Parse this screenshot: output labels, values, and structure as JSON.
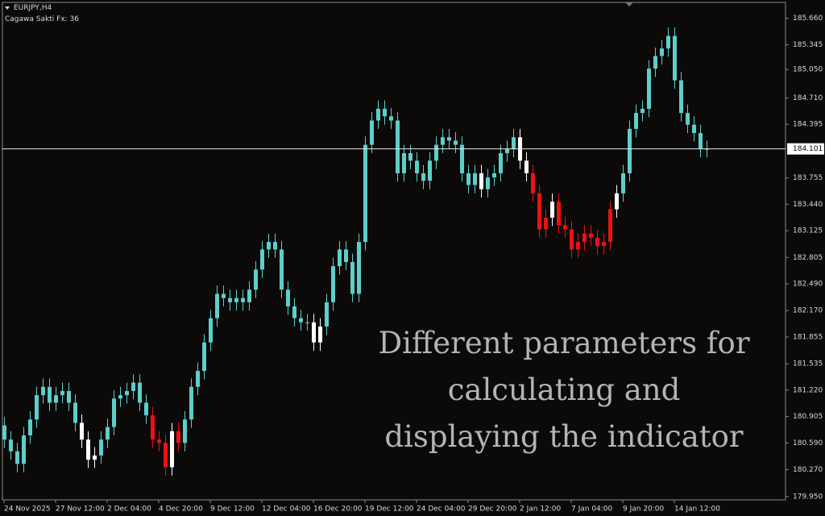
{
  "chart_data": {
    "type": "candlestick",
    "title": "EURJPY,H4",
    "subtitle": "Cagawa Sakti Fx: 36",
    "annotation": [
      "Different parameters for",
      "calculating and",
      "displaying the indicator"
    ],
    "current_price": 184.101,
    "ylim": [
      179.91,
      185.85
    ],
    "yticks": [
      {
        "value": 185.66,
        "label": "185.660"
      },
      185.345,
      {
        "value": 185.05,
        "label": "185.050"
      },
      {
        "value": 184.71,
        "label": "184.710"
      },
      184.395,
      183.755,
      {
        "value": 183.44,
        "label": "183.440"
      },
      183.125,
      182.805,
      {
        "value": 182.49,
        "label": "182.490"
      },
      {
        "value": 182.17,
        "label": "182.170"
      },
      181.855,
      181.535,
      {
        "value": 181.22,
        "label": "181.220"
      },
      180.905,
      {
        "value": 180.59,
        "label": "180.590"
      },
      {
        "value": 180.27,
        "label": "180.270"
      },
      {
        "value": 179.95,
        "label": "179.950"
      }
    ],
    "categories": [
      "24 Nov 2025",
      null,
      null,
      null,
      null,
      null,
      null,
      null,
      "27 Nov 12:00",
      null,
      null,
      null,
      null,
      null,
      null,
      null,
      "2 Dec 04:00",
      null,
      null,
      null,
      null,
      null,
      null,
      null,
      "4 Dec 20:00",
      null,
      null,
      null,
      null,
      null,
      null,
      null,
      "9 Dec 12:00",
      null,
      null,
      null,
      null,
      null,
      null,
      null,
      "12 Dec 04:00",
      null,
      null,
      null,
      null,
      null,
      null,
      null,
      "16 Dec 20:00",
      null,
      null,
      null,
      null,
      null,
      null,
      null,
      "19 Dec 12:00",
      null,
      null,
      null,
      null,
      null,
      null,
      null,
      "24 Dec 04:00",
      null,
      null,
      null,
      null,
      null,
      null,
      null,
      "29 Dec 20:00",
      null,
      null,
      null,
      null,
      null,
      null,
      null,
      "2 Jan 12:00",
      null,
      null,
      null,
      null,
      null,
      null,
      null,
      "7 Jan 04:00",
      null,
      null,
      null,
      null,
      null,
      null,
      null,
      "9 Jan 20:00",
      null,
      null,
      null,
      null,
      null,
      null,
      null,
      "14 Jan 12:00",
      null,
      null,
      null,
      null,
      null
    ],
    "open": [
      180.8,
      180.63,
      180.49,
      180.34,
      180.68,
      180.87,
      181.16,
      181.26,
      181.07,
      181.16,
      181.21,
      181.07,
      180.83,
      180.63,
      180.39,
      180.44,
      180.63,
      180.78,
      181.12,
      181.16,
      181.21,
      181.31,
      181.07,
      180.92,
      180.63,
      180.59,
      180.3,
      180.73,
      180.59,
      180.87,
      181.26,
      181.45,
      181.79,
      182.08,
      182.37,
      182.32,
      182.27,
      182.32,
      182.27,
      182.42,
      182.66,
      182.9,
      182.99,
      182.9,
      182.42,
      182.22,
      182.08,
      182.03,
      182.03,
      181.79,
      181.98,
      182.27,
      182.7,
      182.9,
      182.75,
      182.37,
      182.99,
      184.15,
      184.44,
      184.58,
      184.49,
      184.44,
      183.81,
      184.05,
      183.96,
      183.81,
      183.72,
      183.96,
      184.15,
      184.24,
      184.2,
      184.15,
      183.81,
      183.67,
      183.81,
      183.62,
      183.76,
      183.81,
      184.05,
      184.1,
      184.24,
      183.96,
      183.81,
      183.57,
      183.14,
      183.28,
      183.47,
      183.19,
      183.14,
      182.9,
      182.99,
      183.09,
      183.04,
      182.94,
      182.99,
      183.38,
      183.57,
      183.81,
      184.34,
      184.53,
      184.58,
      185.06,
      185.21,
      185.3,
      185.45,
      184.92,
      184.53,
      184.39,
      184.29,
      184.1
    ],
    "high": [
      180.9,
      180.73,
      180.59,
      180.78,
      180.97,
      181.26,
      181.36,
      181.36,
      181.26,
      181.31,
      181.31,
      181.17,
      180.93,
      180.73,
      180.54,
      180.73,
      180.88,
      181.22,
      181.26,
      181.31,
      181.41,
      181.41,
      181.17,
      181.02,
      180.73,
      180.69,
      180.83,
      180.83,
      180.97,
      181.36,
      181.55,
      181.89,
      182.18,
      182.47,
      182.47,
      182.42,
      182.42,
      182.42,
      182.52,
      182.76,
      183.0,
      183.09,
      183.09,
      183.0,
      182.52,
      182.32,
      182.18,
      182.13,
      182.13,
      182.08,
      182.37,
      182.8,
      183.0,
      183.0,
      182.85,
      183.09,
      184.25,
      184.54,
      184.68,
      184.68,
      184.59,
      184.54,
      184.15,
      184.15,
      184.06,
      183.91,
      184.06,
      184.25,
      184.34,
      184.34,
      184.3,
      184.25,
      183.91,
      183.91,
      183.91,
      183.86,
      183.91,
      184.15,
      184.2,
      184.34,
      184.34,
      184.06,
      183.91,
      183.67,
      183.38,
      183.57,
      183.57,
      183.29,
      183.24,
      183.09,
      183.19,
      183.19,
      183.14,
      183.09,
      183.48,
      183.67,
      183.91,
      184.44,
      184.63,
      184.68,
      185.16,
      185.31,
      185.4,
      185.55,
      185.55,
      185.02,
      184.63,
      184.49,
      184.39,
      184.2
    ],
    "low": [
      180.53,
      180.39,
      180.24,
      180.24,
      180.58,
      180.77,
      181.06,
      180.97,
      180.97,
      181.06,
      180.97,
      180.73,
      180.53,
      180.29,
      180.29,
      180.34,
      180.53,
      180.68,
      181.02,
      181.06,
      181.11,
      180.97,
      180.82,
      180.53,
      180.49,
      180.2,
      180.2,
      180.49,
      180.49,
      180.77,
      181.16,
      181.35,
      181.69,
      181.98,
      182.22,
      182.17,
      182.17,
      182.17,
      182.17,
      182.32,
      182.56,
      182.8,
      182.8,
      182.32,
      182.12,
      181.98,
      181.93,
      181.93,
      181.69,
      181.69,
      181.88,
      182.17,
      182.6,
      182.65,
      182.27,
      182.27,
      182.89,
      184.05,
      184.34,
      184.39,
      184.34,
      183.71,
      183.71,
      183.86,
      183.71,
      183.62,
      183.62,
      183.86,
      184.05,
      184.1,
      184.05,
      183.71,
      183.57,
      183.57,
      183.52,
      183.52,
      183.66,
      183.71,
      183.95,
      184.0,
      183.86,
      183.71,
      183.47,
      183.04,
      183.04,
      183.18,
      183.09,
      183.04,
      182.8,
      182.8,
      182.89,
      182.94,
      182.84,
      182.84,
      182.89,
      183.28,
      183.47,
      183.71,
      184.24,
      184.43,
      184.48,
      184.96,
      185.11,
      185.2,
      184.82,
      184.43,
      184.29,
      184.19,
      184.0,
      184.0
    ],
    "close": [
      180.63,
      180.49,
      180.34,
      180.68,
      180.87,
      181.16,
      181.26,
      181.07,
      181.16,
      181.21,
      181.07,
      180.83,
      180.63,
      180.39,
      180.44,
      180.63,
      180.78,
      181.12,
      181.16,
      181.21,
      181.31,
      181.07,
      180.92,
      180.63,
      180.59,
      180.3,
      180.73,
      180.59,
      180.87,
      181.26,
      181.45,
      181.79,
      182.08,
      182.37,
      182.32,
      182.27,
      182.32,
      182.27,
      182.42,
      182.66,
      182.9,
      182.99,
      182.9,
      182.42,
      182.22,
      182.08,
      182.03,
      182.03,
      181.79,
      181.98,
      182.27,
      182.7,
      182.9,
      182.75,
      182.37,
      182.99,
      184.15,
      184.44,
      184.58,
      184.49,
      184.44,
      183.81,
      184.05,
      183.96,
      183.81,
      183.72,
      183.96,
      184.15,
      184.24,
      184.2,
      184.15,
      183.81,
      183.67,
      183.81,
      183.62,
      183.76,
      183.81,
      184.05,
      184.1,
      184.24,
      183.96,
      183.81,
      183.57,
      183.14,
      183.28,
      183.47,
      183.19,
      183.14,
      182.9,
      182.99,
      183.09,
      183.04,
      182.94,
      182.99,
      183.38,
      183.57,
      183.81,
      184.34,
      184.53,
      184.58,
      185.06,
      185.21,
      185.3,
      185.45,
      184.92,
      184.53,
      184.39,
      184.29,
      184.1,
      184.101
    ],
    "colors": [
      "#5ccfcb",
      "#5ccfcb",
      "#5ccfcb",
      "#5ccfcb",
      "#5ccfcb",
      "#5ccfcb",
      "#5ccfcb",
      "#5ccfcb",
      "#5ccfcb",
      "#5ccfcb",
      "#5ccfcb",
      "#5ccfcb",
      "#ffffff",
      "#ffffff",
      "#ffffff",
      "#5ccfcb",
      "#5ccfcb",
      "#5ccfcb",
      "#5ccfcb",
      "#5ccfcb",
      "#5ccfcb",
      "#5ccfcb",
      "#5ccfcb",
      "#ee1111",
      "#ee1111",
      "#ee1111",
      "#ffffff",
      "#ee1111",
      "#5ccfcb",
      "#5ccfcb",
      "#5ccfcb",
      "#5ccfcb",
      "#5ccfcb",
      "#5ccfcb",
      "#5ccfcb",
      "#5ccfcb",
      "#5ccfcb",
      "#5ccfcb",
      "#5ccfcb",
      "#5ccfcb",
      "#5ccfcb",
      "#5ccfcb",
      "#5ccfcb",
      "#5ccfcb",
      "#5ccfcb",
      "#5ccfcb",
      "#5ccfcb",
      "#5ccfcb",
      "#ffffff",
      "#ffffff",
      "#5ccfcb",
      "#5ccfcb",
      "#5ccfcb",
      "#5ccfcb",
      "#5ccfcb",
      "#5ccfcb",
      "#5ccfcb",
      "#5ccfcb",
      "#5ccfcb",
      "#5ccfcb",
      "#5ccfcb",
      "#5ccfcb",
      "#5ccfcb",
      "#5ccfcb",
      "#5ccfcb",
      "#5ccfcb",
      "#5ccfcb",
      "#5ccfcb",
      "#5ccfcb",
      "#5ccfcb",
      "#5ccfcb",
      "#5ccfcb",
      "#5ccfcb",
      "#5ccfcb",
      "#ffffff",
      "#5ccfcb",
      "#5ccfcb",
      "#5ccfcb",
      "#5ccfcb",
      "#5ccfcb",
      "#ffffff",
      "#ffffff",
      "#ee1111",
      "#ee1111",
      "#ee1111",
      "#ffffff",
      "#ee1111",
      "#ee1111",
      "#ee1111",
      "#ee1111",
      "#ee1111",
      "#ee1111",
      "#ee1111",
      "#ee1111",
      "#ee1111",
      "#ffffff",
      "#5ccfcb",
      "#5ccfcb",
      "#5ccfcb",
      "#5ccfcb",
      "#5ccfcb",
      "#5ccfcb",
      "#5ccfcb",
      "#5ccfcb",
      "#5ccfcb",
      "#5ccfcb",
      "#5ccfcb",
      "#5ccfcb",
      "#5ccfcb",
      "#5ccfcb"
    ]
  }
}
